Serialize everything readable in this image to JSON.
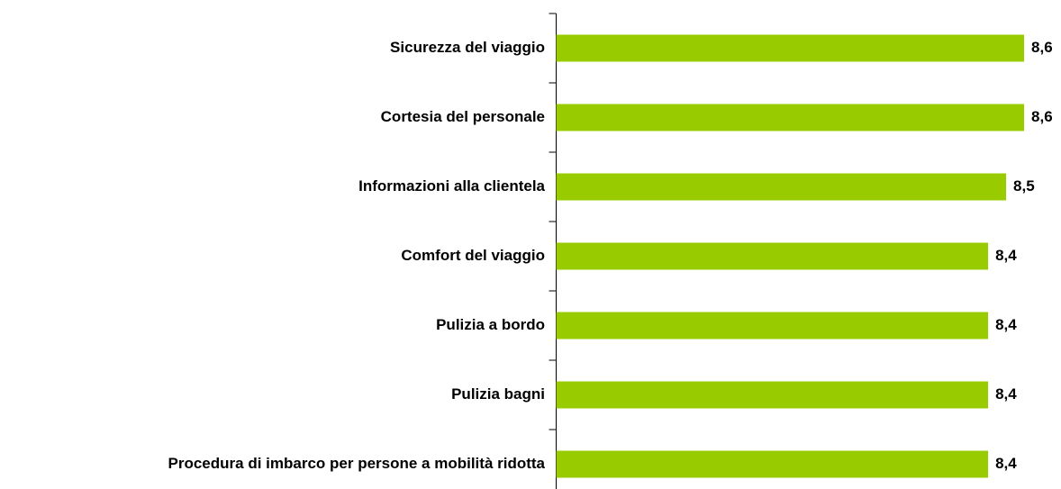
{
  "chart_data": {
    "type": "bar",
    "orientation": "horizontal",
    "categories": [
      "Sicurezza del viaggio",
      "Cortesia del personale",
      "Informazioni alla clientela",
      "Comfort del viaggio",
      "Pulizia a bordo",
      "Pulizia bagni",
      "Procedura di imbarco per persone a mobilità ridotta"
    ],
    "values": [
      8.6,
      8.6,
      8.5,
      8.4,
      8.4,
      8.4,
      8.4
    ],
    "value_labels": [
      "8,6",
      "8,6",
      "8,5",
      "8,4",
      "8,4",
      "8,4",
      "8,4"
    ],
    "color": "#99cc00",
    "xlim": [
      6,
      8.8
    ]
  }
}
